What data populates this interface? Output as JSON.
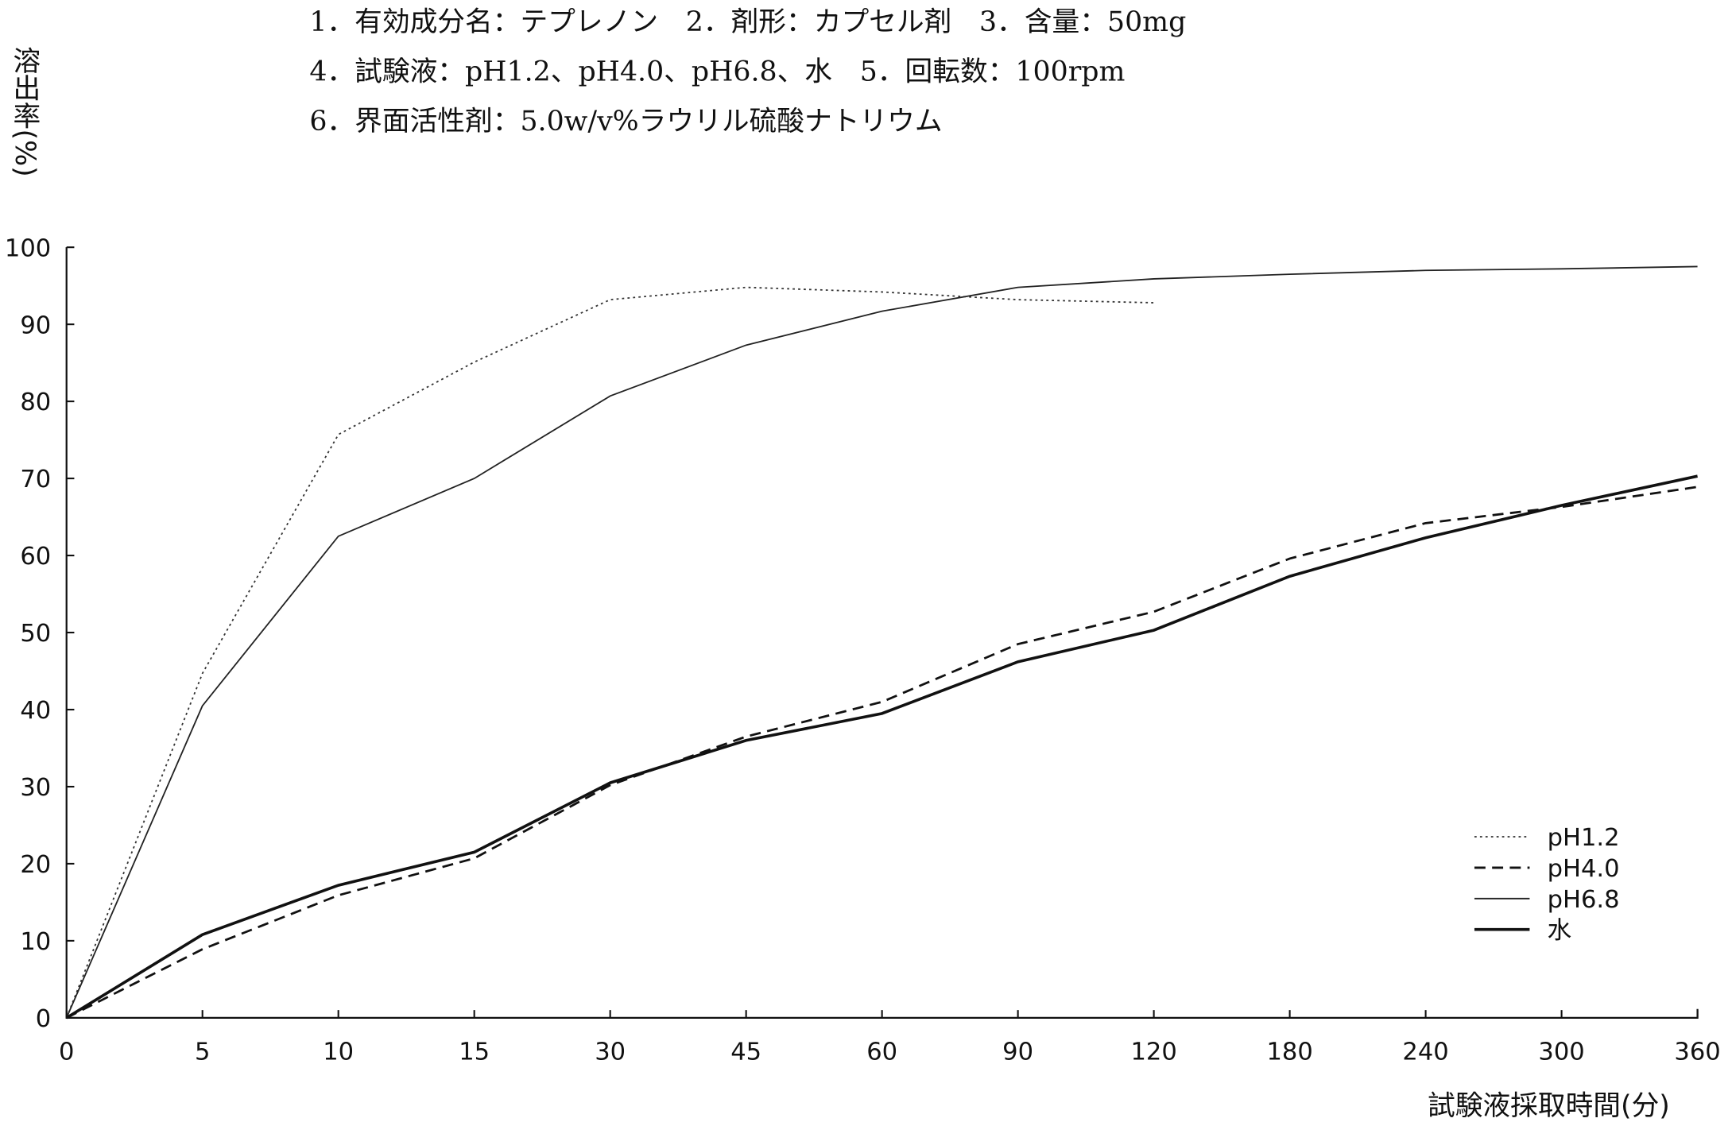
{
  "chart_data": {
    "type": "line",
    "title_lines": [
      "1．有効成分名：テプレノン　2．剤形：カプセル剤　3．含量：50mg",
      "4．試験液：pH1.2、pH4.0、pH6.8、水　5．回転数：100rpm",
      "6．界面活性剤：5.0w/v%ラウリル硫酸ナトリウム"
    ],
    "y_label": "溶出率(%)",
    "x_label": "試験液採取時間(分)",
    "categories": [
      "0",
      "5",
      "10",
      "15",
      "30",
      "45",
      "60",
      "90",
      "120",
      "180",
      "240",
      "300",
      "360"
    ],
    "ylim": [
      0,
      100
    ],
    "yticks": [
      0,
      10,
      20,
      30,
      40,
      50,
      60,
      70,
      80,
      90,
      100
    ],
    "grid": false,
    "legend": "lower right",
    "series": [
      {
        "name": "pH1.2",
        "color": "#333333",
        "line_style": "dotted",
        "values": [
          0,
          44.7,
          75.7,
          85.1,
          93.2,
          94.8,
          94.2,
          93.2,
          92.8,
          null,
          null,
          null,
          null
        ]
      },
      {
        "name": "pH4.0",
        "color": "#111111",
        "line_style": "dashed",
        "values": [
          0,
          8.9,
          15.9,
          20.7,
          30.2,
          36.5,
          41.0,
          48.5,
          52.7,
          59.6,
          64.2,
          66.3,
          68.9
        ]
      },
      {
        "name": "pH6.8",
        "color": "#222222",
        "line_style": "solid",
        "values": [
          0,
          40.5,
          62.5,
          70.0,
          80.7,
          87.3,
          91.7,
          94.8,
          95.9,
          96.5,
          97.0,
          97.2,
          97.5
        ]
      },
      {
        "name": "水",
        "color": "#111111",
        "line_style": "bold",
        "values": [
          0,
          10.8,
          17.2,
          21.5,
          30.5,
          36.0,
          39.5,
          46.2,
          50.3,
          57.3,
          62.3,
          66.5,
          70.3
        ]
      }
    ]
  }
}
